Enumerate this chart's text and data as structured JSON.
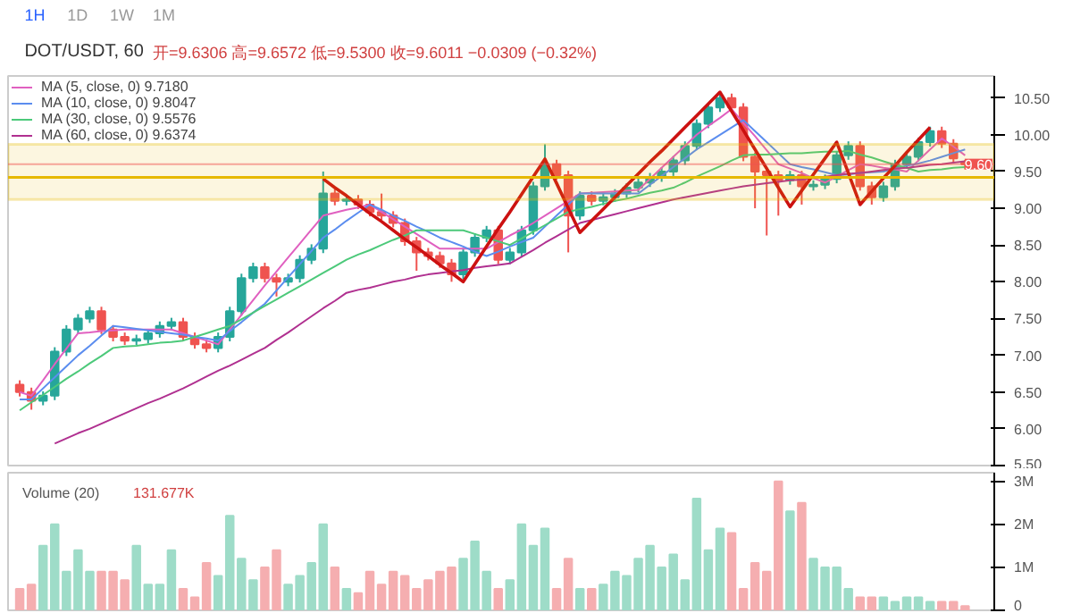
{
  "chart_data": [
    {
      "type": "candlestick",
      "title": "DOT/USDT, 60",
      "subtitle": "开=9.6306 高=9.6572 低=9.5300 收=9.6011 −0.0309 (−0.32%)",
      "annotations": [
        "1H",
        "1D",
        "1W",
        "1M"
      ],
      "categories": [
        null,
        null,
        null,
        null,
        null,
        null,
        null,
        null,
        null,
        null,
        null,
        null,
        null,
        null,
        null,
        null,
        null,
        null,
        null,
        null,
        null,
        null,
        null,
        null,
        null,
        null,
        null,
        null,
        null,
        null,
        null,
        null,
        null,
        null,
        null,
        null,
        null,
        null,
        null,
        null,
        null,
        null,
        null,
        null,
        null,
        null,
        null,
        null,
        null,
        null,
        null,
        null,
        null,
        null,
        null,
        null,
        null,
        null,
        null,
        null,
        null,
        null,
        null,
        null,
        null,
        null,
        null,
        null,
        null,
        null,
        null,
        null,
        null,
        null,
        null,
        null,
        null,
        null,
        null,
        null,
        null,
        null
      ],
      "ohlc": [
        [
          6.6,
          6.66,
          6.44,
          6.5
        ],
        [
          6.5,
          6.56,
          6.26,
          6.38
        ],
        [
          6.38,
          6.51,
          6.32,
          6.45
        ],
        [
          6.45,
          7.11,
          6.39,
          7.05
        ],
        [
          7.05,
          7.41,
          6.99,
          7.35
        ],
        [
          7.35,
          7.56,
          7.29,
          7.5
        ],
        [
          7.5,
          7.66,
          7.44,
          7.6
        ],
        [
          7.6,
          7.66,
          7.29,
          7.35
        ],
        [
          7.35,
          7.41,
          7.19,
          7.25
        ],
        [
          7.25,
          7.31,
          7.14,
          7.2
        ],
        [
          7.2,
          7.28,
          7.14,
          7.22
        ],
        [
          7.22,
          7.36,
          7.16,
          7.3
        ],
        [
          7.3,
          7.46,
          7.24,
          7.4
        ],
        [
          7.4,
          7.51,
          7.34,
          7.45
        ],
        [
          7.45,
          7.51,
          7.19,
          7.25
        ],
        [
          7.25,
          7.31,
          7.09,
          7.15
        ],
        [
          7.15,
          7.21,
          7.04,
          7.1
        ],
        [
          7.1,
          7.31,
          7.04,
          7.25
        ],
        [
          7.25,
          7.66,
          7.19,
          7.6
        ],
        [
          7.6,
          8.11,
          7.54,
          8.05
        ],
        [
          8.05,
          8.26,
          7.99,
          8.2
        ],
        [
          8.2,
          8.26,
          7.99,
          8.05
        ],
        [
          8.05,
          8.11,
          7.8,
          8.0
        ],
        [
          8.0,
          8.11,
          7.94,
          8.05
        ],
        [
          8.05,
          8.36,
          7.99,
          8.3
        ],
        [
          8.3,
          8.51,
          8.24,
          8.45
        ],
        [
          8.45,
          9.5,
          8.39,
          9.2
        ],
        [
          9.2,
          9.26,
          9.04,
          9.1
        ],
        [
          9.1,
          9.18,
          9.04,
          9.12
        ],
        [
          9.12,
          9.18,
          8.99,
          9.05
        ],
        [
          9.05,
          9.11,
          8.89,
          8.95
        ],
        [
          8.95,
          9.2,
          8.84,
          8.9
        ],
        [
          8.9,
          8.96,
          8.74,
          8.8
        ],
        [
          8.8,
          8.86,
          8.49,
          8.55
        ],
        [
          8.55,
          8.61,
          8.15,
          8.4
        ],
        [
          8.4,
          8.46,
          8.29,
          8.35
        ],
        [
          8.35,
          8.41,
          8.19,
          8.25
        ],
        [
          8.25,
          8.31,
          8.0,
          8.1
        ],
        [
          8.1,
          8.46,
          8.04,
          8.4
        ],
        [
          8.4,
          8.66,
          8.34,
          8.6
        ],
        [
          8.6,
          8.76,
          8.54,
          8.7
        ],
        [
          8.7,
          8.76,
          8.24,
          8.3
        ],
        [
          8.3,
          8.46,
          8.24,
          8.4
        ],
        [
          8.4,
          8.76,
          8.34,
          8.7
        ],
        [
          8.7,
          9.36,
          8.64,
          9.3
        ],
        [
          9.3,
          9.87,
          9.24,
          9.6
        ],
        [
          9.6,
          9.66,
          9.39,
          9.45
        ],
        [
          9.45,
          9.51,
          8.4,
          8.9
        ],
        [
          8.9,
          9.23,
          8.84,
          9.17
        ],
        [
          9.17,
          9.23,
          9.04,
          9.1
        ],
        [
          9.1,
          9.21,
          9.04,
          9.15
        ],
        [
          9.15,
          9.26,
          9.09,
          9.2
        ],
        [
          9.2,
          9.34,
          9.14,
          9.28
        ],
        [
          9.28,
          9.41,
          9.22,
          9.35
        ],
        [
          9.35,
          9.48,
          9.29,
          9.42
        ],
        [
          9.42,
          9.56,
          9.36,
          9.5
        ],
        [
          9.5,
          9.71,
          9.44,
          9.65
        ],
        [
          9.65,
          9.91,
          9.59,
          9.85
        ],
        [
          9.85,
          10.21,
          9.79,
          10.15
        ],
        [
          10.15,
          10.43,
          10.09,
          10.37
        ],
        [
          10.37,
          10.58,
          10.31,
          10.5
        ],
        [
          10.5,
          10.56,
          10.31,
          10.37
        ],
        [
          10.37,
          10.43,
          9.64,
          9.7
        ],
        [
          9.7,
          9.76,
          9.0,
          9.5
        ],
        [
          9.5,
          9.56,
          8.63,
          9.45
        ],
        [
          9.45,
          9.51,
          8.9,
          9.38
        ],
        [
          9.38,
          9.51,
          9.32,
          9.45
        ],
        [
          9.45,
          9.51,
          9.05,
          9.3
        ],
        [
          9.3,
          9.38,
          9.24,
          9.32
        ],
        [
          9.32,
          9.46,
          9.26,
          9.4
        ],
        [
          9.4,
          9.78,
          9.34,
          9.72
        ],
        [
          9.72,
          9.91,
          9.66,
          9.85
        ],
        [
          9.85,
          9.91,
          9.24,
          9.3
        ],
        [
          9.3,
          9.36,
          9.05,
          9.15
        ],
        [
          9.15,
          9.36,
          9.09,
          9.3
        ],
        [
          9.3,
          9.66,
          9.24,
          9.6
        ],
        [
          9.6,
          9.76,
          9.54,
          9.7
        ],
        [
          9.7,
          9.96,
          9.64,
          9.9
        ],
        [
          9.9,
          10.11,
          9.84,
          10.05
        ],
        [
          10.05,
          10.11,
          9.82,
          9.88
        ],
        [
          9.88,
          9.94,
          9.62,
          9.68
        ],
        [
          9.6306,
          9.6572,
          9.53,
          9.6011
        ]
      ],
      "colors": [
        "#ef5350",
        "#ef5350",
        "#26a69a",
        "#26a69a",
        "#26a69a",
        "#26a69a",
        "#26a69a",
        "#ef5350",
        "#ef5350",
        "#ef5350",
        "#26a69a",
        "#26a69a",
        "#26a69a",
        "#26a69a",
        "#ef5350",
        "#ef5350",
        "#ef5350",
        "#26a69a",
        "#26a69a",
        "#26a69a",
        "#26a69a",
        "#ef5350",
        "#ef5350",
        "#26a69a",
        "#26a69a",
        "#26a69a",
        "#26a69a",
        "#ef5350",
        "#26a69a",
        "#ef5350",
        "#ef5350",
        "#ef5350",
        "#ef5350",
        "#ef5350",
        "#ef5350",
        "#ef5350",
        "#ef5350",
        "#ef5350",
        "#26a69a",
        "#26a69a",
        "#26a69a",
        "#ef5350",
        "#26a69a",
        "#26a69a",
        "#26a69a",
        "#26a69a",
        "#ef5350",
        "#ef5350",
        "#26a69a",
        "#ef5350",
        "#26a69a",
        "#26a69a",
        "#26a69a",
        "#26a69a",
        "#26a69a",
        "#26a69a",
        "#26a69a",
        "#26a69a",
        "#26a69a",
        "#26a69a",
        "#26a69a",
        "#ef5350",
        "#ef5350",
        "#ef5350",
        "#ef5350",
        "#ef5350",
        "#26a69a",
        "#ef5350",
        "#26a69a",
        "#26a69a",
        "#26a69a",
        "#26a69a",
        "#ef5350",
        "#ef5350",
        "#26a69a",
        "#26a69a",
        "#26a69a",
        "#26a69a",
        "#26a69a",
        "#ef5350",
        "#ef5350",
        "#ef5350"
      ],
      "series": [
        {
          "type": "line",
          "name": "MA (5, close, 0) 9.7180",
          "color": "#e060c0",
          "values": [
            6.5,
            6.45,
            6.66,
            6.88,
            7.09,
            7.3,
            7.31,
            7.33,
            7.34,
            7.35,
            7.35,
            7.35,
            7.35,
            7.35,
            7.3,
            7.25,
            7.2,
            7.15,
            7.35,
            7.55,
            7.75,
            7.95,
            8.14,
            8.33,
            8.52,
            8.71,
            8.9,
            8.94,
            8.98,
            9.01,
            9.05,
            8.95,
            8.85,
            8.75,
            8.65,
            8.55,
            8.45,
            8.45,
            8.45,
            8.45,
            8.45,
            8.54,
            8.63,
            8.71,
            8.8,
            8.9,
            9.0,
            9.1,
            9.2,
            9.21,
            9.22,
            9.23,
            9.24,
            9.25,
            9.4,
            9.55,
            9.7,
            9.85,
            10.0,
            10.12,
            10.23,
            10.35,
            10.16,
            9.98,
            9.79,
            9.6,
            9.54,
            9.48,
            9.41,
            9.35,
            9.43,
            9.52,
            9.6,
            9.58,
            9.55,
            9.53,
            9.5,
            9.65,
            9.8,
            9.95,
            9.84,
            9.72
          ]
        },
        {
          "type": "line",
          "name": "MA (10, close, 0) 9.8047",
          "color": "#5b8def",
          "values": [
            6.4,
            6.4,
            6.55,
            6.7,
            6.85,
            7.0,
            7.13,
            7.27,
            7.4,
            7.38,
            7.36,
            7.34,
            7.32,
            7.3,
            7.28,
            7.25,
            7.23,
            7.2,
            7.33,
            7.45,
            7.58,
            7.7,
            7.88,
            8.06,
            8.24,
            8.42,
            8.6,
            8.71,
            8.83,
            8.94,
            9.05,
            8.98,
            8.9,
            8.83,
            8.75,
            8.68,
            8.6,
            8.54,
            8.48,
            8.41,
            8.35,
            8.41,
            8.48,
            8.54,
            8.6,
            8.75,
            8.9,
            9.05,
            9.2,
            9.2,
            9.2,
            9.2,
            9.2,
            9.2,
            9.32,
            9.44,
            9.56,
            9.68,
            9.8,
            9.9,
            10.0,
            10.1,
            10.2,
            10.05,
            9.9,
            9.75,
            9.6,
            9.56,
            9.53,
            9.49,
            9.45,
            9.46,
            9.48,
            9.49,
            9.5,
            9.54,
            9.58,
            9.61,
            9.65,
            9.7,
            9.75,
            9.8
          ]
        },
        {
          "type": "line",
          "name": "MA (30, close, 0) 9.5576",
          "color": "#4cc97a",
          "values": [
            6.25,
            6.36,
            6.46,
            6.57,
            6.68,
            6.78,
            6.89,
            6.99,
            7.1,
            7.12,
            7.13,
            7.15,
            7.17,
            7.18,
            7.2,
            7.25,
            7.3,
            7.35,
            7.4,
            7.49,
            7.58,
            7.67,
            7.76,
            7.85,
            7.94,
            8.03,
            8.12,
            8.21,
            8.3,
            8.37,
            8.43,
            8.5,
            8.57,
            8.63,
            8.7,
            8.7,
            8.7,
            8.7,
            8.7,
            8.65,
            8.6,
            8.55,
            8.5,
            8.59,
            8.68,
            8.77,
            8.86,
            8.95,
            8.99,
            9.02,
            9.06,
            9.1,
            9.13,
            9.17,
            9.21,
            9.24,
            9.28,
            9.35,
            9.43,
            9.5,
            9.57,
            9.65,
            9.72,
            9.73,
            9.73,
            9.74,
            9.75,
            9.75,
            9.76,
            9.77,
            9.77,
            9.78,
            9.73,
            9.69,
            9.64,
            9.59,
            9.55,
            9.5,
            9.52,
            9.53,
            9.55,
            9.56
          ]
        },
        {
          "type": "line",
          "name": "MA (60, close, 0) 9.6374",
          "color": "#b03090",
          "values": [
            null,
            null,
            null,
            5.8,
            5.87,
            5.94,
            6.0,
            6.07,
            6.14,
            6.21,
            6.28,
            6.35,
            6.41,
            6.48,
            6.55,
            6.63,
            6.71,
            6.79,
            6.86,
            6.94,
            7.02,
            7.1,
            7.21,
            7.31,
            7.42,
            7.53,
            7.64,
            7.74,
            7.85,
            7.89,
            7.92,
            7.96,
            8.0,
            8.03,
            8.07,
            8.1,
            8.12,
            8.14,
            8.16,
            8.19,
            8.21,
            8.23,
            8.25,
            8.34,
            8.43,
            8.53,
            8.62,
            8.71,
            8.8,
            8.84,
            8.88,
            8.92,
            8.96,
            9.0,
            9.04,
            9.08,
            9.12,
            9.15,
            9.18,
            9.21,
            9.24,
            9.27,
            9.3,
            9.32,
            9.34,
            9.36,
            9.38,
            9.39,
            9.41,
            9.43,
            9.45,
            9.47,
            9.48,
            9.5,
            9.52,
            9.54,
            9.55,
            9.57,
            9.59,
            9.6,
            9.62,
            9.64
          ]
        },
        {
          "type": "line",
          "color": "#cc1111",
          "values": [
            null,
            null,
            null,
            null,
            null,
            null,
            null,
            null,
            null,
            null,
            null,
            null,
            null,
            null,
            null,
            null,
            null,
            null,
            null,
            null,
            null,
            null,
            null,
            null,
            null,
            null,
            9.4,
            9.28,
            9.17,
            9.05,
            8.93,
            8.82,
            8.7,
            8.58,
            8.47,
            8.35,
            8.23,
            8.12,
            8.0,
            8.24,
            8.48,
            8.72,
            8.95,
            9.19,
            9.43,
            9.67,
            9.34,
            9.0,
            8.67,
            8.83,
            8.99,
            9.15,
            9.31,
            9.47,
            9.63,
            9.78,
            9.94,
            10.1,
            10.26,
            10.42,
            10.58,
            10.32,
            10.06,
            9.8,
            9.54,
            9.28,
            9.02,
            9.24,
            9.46,
            9.68,
            9.9,
            9.48,
            9.05,
            9.23,
            9.41,
            9.58,
            9.76,
            9.93,
            10.1,
            null,
            null,
            null
          ]
        }
      ],
      "ref_lines": [
        {
          "axis": "y",
          "value": 9.6011,
          "label": "9.60",
          "color": "#ef5350",
          "line_style": "solid"
        },
        {
          "axis": "y",
          "value": 9.42,
          "color": "#e6b800",
          "line_style": "solid"
        }
      ],
      "bands": [
        {
          "axis": "y",
          "from": 9.12,
          "to": 9.87,
          "color": "#e6b800"
        }
      ],
      "ylim": [
        5.5,
        10.8
      ],
      "yticks": [
        {
          "value": 5.5,
          "label": "5.50"
        },
        {
          "value": 6,
          "label": "6.00"
        },
        {
          "value": 6.5,
          "label": "6.50"
        },
        {
          "value": 7,
          "label": "7.00"
        },
        {
          "value": 7.5,
          "label": "7.50"
        },
        {
          "value": 8,
          "label": "8.00"
        },
        {
          "value": 8.5,
          "label": "8.50"
        },
        {
          "value": 9,
          "label": "9.00"
        },
        {
          "value": 9.5,
          "label": "9.50"
        },
        {
          "value": 10,
          "label": "10.00"
        },
        {
          "value": 10.5,
          "label": "10.50"
        }
      ],
      "tick_labels": "y",
      "legend": "top left"
    },
    {
      "type": "bar",
      "title": "Volume (20)",
      "annotations": [
        "131.677K"
      ],
      "categories": [
        null,
        null,
        null,
        null,
        null,
        null,
        null,
        null,
        null,
        null,
        null,
        null,
        null,
        null,
        null,
        null,
        null,
        null,
        null,
        null,
        null,
        null,
        null,
        null,
        null,
        null,
        null,
        null,
        null,
        null,
        null,
        null,
        null,
        null,
        null,
        null,
        null,
        null,
        null,
        null,
        null,
        null,
        null,
        null,
        null,
        null,
        null,
        null,
        null,
        null,
        null,
        null,
        null,
        null,
        null,
        null,
        null,
        null,
        null,
        null,
        null,
        null,
        null,
        null,
        null,
        null,
        null,
        null,
        null,
        null,
        null,
        null,
        null,
        null,
        null,
        null,
        null,
        null,
        null,
        null,
        null,
        null
      ],
      "values": [
        0.5,
        0.6,
        1.5,
        2.0,
        0.9,
        1.4,
        0.9,
        0.9,
        0.9,
        0.7,
        1.5,
        0.6,
        0.6,
        1.4,
        0.5,
        0.3,
        1.1,
        0.8,
        2.2,
        1.2,
        0.7,
        1.0,
        1.4,
        0.6,
        0.8,
        1.1,
        2.0,
        1.0,
        0.5,
        0.4,
        0.9,
        0.6,
        0.9,
        0.8,
        0.5,
        0.7,
        0.9,
        1.0,
        1.2,
        1.6,
        0.9,
        0.5,
        0.7,
        2.0,
        1.5,
        1.9,
        0.5,
        1.2,
        0.5,
        0.5,
        0.6,
        0.9,
        0.8,
        1.2,
        1.5,
        1.0,
        1.3,
        0.7,
        2.6,
        1.4,
        1.9,
        1.8,
        0.5,
        1.1,
        0.9,
        3.0,
        2.3,
        2.5,
        1.2,
        1.0,
        1.0,
        0.5,
        0.3,
        0.3,
        0.3,
        0.2,
        0.3,
        0.3,
        0.2,
        0.2,
        0.2,
        0.1
      ],
      "colors": [
        "#f5aeb0",
        "#f5aeb0",
        "#9edcc8",
        "#9edcc8",
        "#9edcc8",
        "#9edcc8",
        "#9edcc8",
        "#f5aeb0",
        "#f5aeb0",
        "#f5aeb0",
        "#9edcc8",
        "#9edcc8",
        "#9edcc8",
        "#9edcc8",
        "#f5aeb0",
        "#f5aeb0",
        "#f5aeb0",
        "#9edcc8",
        "#9edcc8",
        "#9edcc8",
        "#9edcc8",
        "#f5aeb0",
        "#f5aeb0",
        "#9edcc8",
        "#9edcc8",
        "#9edcc8",
        "#9edcc8",
        "#f5aeb0",
        "#9edcc8",
        "#f5aeb0",
        "#f5aeb0",
        "#f5aeb0",
        "#f5aeb0",
        "#f5aeb0",
        "#f5aeb0",
        "#f5aeb0",
        "#f5aeb0",
        "#f5aeb0",
        "#9edcc8",
        "#9edcc8",
        "#9edcc8",
        "#f5aeb0",
        "#9edcc8",
        "#9edcc8",
        "#9edcc8",
        "#9edcc8",
        "#f5aeb0",
        "#f5aeb0",
        "#9edcc8",
        "#f5aeb0",
        "#9edcc8",
        "#9edcc8",
        "#9edcc8",
        "#9edcc8",
        "#9edcc8",
        "#9edcc8",
        "#9edcc8",
        "#9edcc8",
        "#9edcc8",
        "#9edcc8",
        "#9edcc8",
        "#f5aeb0",
        "#f5aeb0",
        "#f5aeb0",
        "#f5aeb0",
        "#f5aeb0",
        "#9edcc8",
        "#f5aeb0",
        "#9edcc8",
        "#9edcc8",
        "#9edcc8",
        "#9edcc8",
        "#f5aeb0",
        "#f5aeb0",
        "#9edcc8",
        "#9edcc8",
        "#9edcc8",
        "#9edcc8",
        "#9edcc8",
        "#f5aeb0",
        "#f5aeb0",
        "#f5aeb0"
      ],
      "ylim": [
        0,
        3.2
      ],
      "yticks": [
        {
          "value": 0,
          "label": "0"
        },
        {
          "value": 1,
          "label": "1M"
        },
        {
          "value": 2,
          "label": "2M"
        },
        {
          "value": 3,
          "label": "3M"
        }
      ],
      "tick_labels": "y"
    }
  ]
}
